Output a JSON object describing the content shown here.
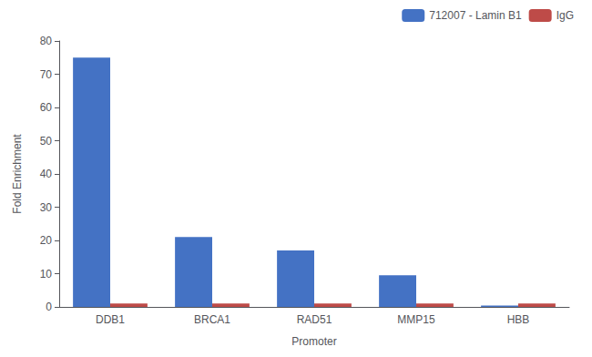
{
  "chart_data": {
    "type": "bar",
    "categories": [
      "DDB1",
      "BRCA1",
      "RAD51",
      "MMP15",
      "HBB"
    ],
    "series": [
      {
        "name": "712007 - Lamin B1",
        "color": "#4472C4",
        "values": [
          75,
          21,
          17,
          9.5,
          0.4
        ]
      },
      {
        "name": "IgG",
        "color": "#BE4B48",
        "values": [
          1.0,
          1.0,
          1.0,
          1.0,
          1.0
        ]
      }
    ],
    "xlabel": "Promoter",
    "ylabel": "Fold Enrichment",
    "ylim": [
      0,
      80
    ],
    "yticks": [
      0,
      10,
      20,
      30,
      40,
      50,
      60,
      70,
      80
    ],
    "grid": false,
    "legend": "upper right"
  }
}
